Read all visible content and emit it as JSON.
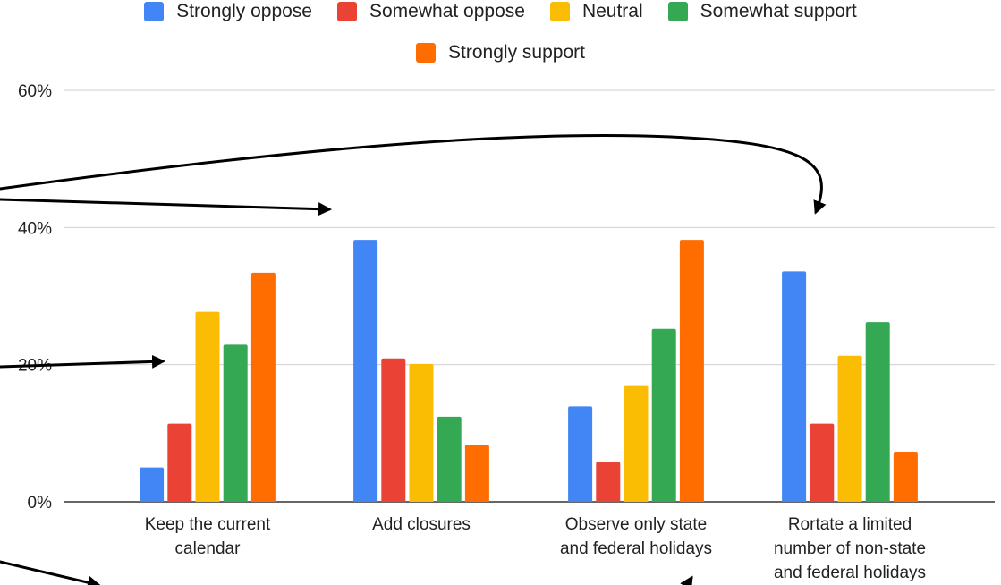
{
  "chart_data": {
    "type": "bar",
    "categories": [
      [
        "Keep the current",
        "calendar"
      ],
      [
        "Add closures"
      ],
      [
        "Observe only state",
        "and federal holidays"
      ],
      [
        "Rortate a limited",
        "number of non-state",
        "and federal holidays"
      ]
    ],
    "series": [
      {
        "name": "Strongly oppose",
        "color": "#4285F4",
        "values": [
          5,
          38.2,
          13.9,
          33.6
        ]
      },
      {
        "name": "Somewhat oppose",
        "color": "#EA4335",
        "values": [
          11.4,
          20.9,
          5.8,
          11.4
        ]
      },
      {
        "name": "Neutral",
        "color": "#FBBC04",
        "values": [
          27.7,
          20.1,
          17,
          21.3
        ]
      },
      {
        "name": "Somewhat support",
        "color": "#34A853",
        "values": [
          22.9,
          12.4,
          25.2,
          26.2
        ]
      },
      {
        "name": "Strongly support",
        "color": "#FF6D01",
        "values": [
          33.4,
          8.3,
          38.2,
          7.3
        ]
      }
    ],
    "yticks": [
      "0%",
      "20%",
      "40%",
      "60%"
    ],
    "ylim": [
      0,
      60
    ],
    "grid": true,
    "legend": "top",
    "title": "",
    "xlabel": "",
    "ylabel": ""
  }
}
